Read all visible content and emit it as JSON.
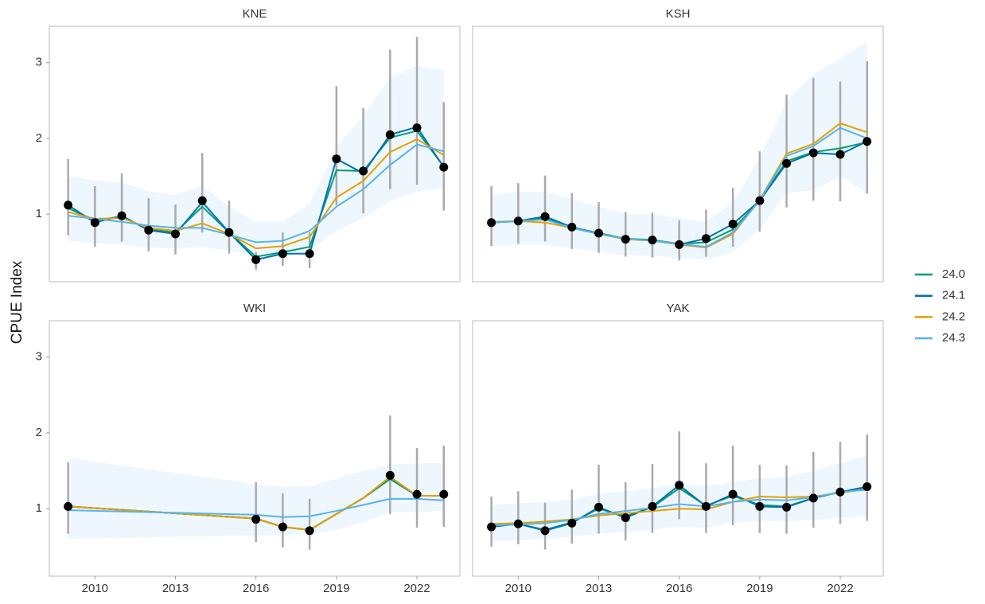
{
  "y_label": "CPUE Index",
  "chart_data": [
    {
      "type": "line",
      "title": "KNE",
      "x": [
        2009,
        2010,
        2011,
        2012,
        2013,
        2014,
        2015,
        2016,
        2017,
        2018,
        2019,
        2020,
        2021,
        2022,
        2023
      ],
      "xlim": [
        2008.3,
        2023.6
      ],
      "ylim": [
        0.11,
        3.48
      ],
      "yticks": [
        1,
        2,
        3
      ],
      "band_color": "#56B4E9",
      "band_upper": [
        1.5,
        1.45,
        1.42,
        1.3,
        1.25,
        1.38,
        1.1,
        0.9,
        0.9,
        1.14,
        1.9,
        2.3,
        2.8,
        2.96,
        2.9
      ],
      "band_lower": [
        0.65,
        0.62,
        0.6,
        0.56,
        0.55,
        0.57,
        0.52,
        0.43,
        0.44,
        0.52,
        0.78,
        0.95,
        1.17,
        1.3,
        1.35
      ],
      "observed": [
        1.12,
        0.89,
        0.98,
        0.79,
        0.74,
        1.18,
        0.76,
        0.4,
        0.48,
        0.48,
        1.73,
        1.57,
        2.05,
        2.14,
        1.62
      ],
      "err_upper": [
        1.73,
        1.37,
        1.54,
        1.21,
        1.13,
        1.81,
        1.18,
        0.5,
        0.76,
        0.76,
        2.69,
        2.4,
        3.17,
        3.34,
        2.48
      ],
      "err_lower": [
        0.72,
        0.57,
        0.64,
        0.51,
        0.47,
        0.76,
        0.48,
        0.27,
        0.32,
        0.29,
        1.12,
        1.01,
        1.33,
        1.39,
        1.05
      ],
      "series": [
        {
          "name": "24.0",
          "color": "#009E73",
          "values": [
            1.08,
            0.92,
            0.97,
            0.8,
            0.76,
            1.1,
            0.76,
            0.44,
            0.5,
            0.57,
            1.58,
            1.57,
            2.01,
            2.1,
            1.63
          ]
        },
        {
          "name": "24.1",
          "color": "#0072B2",
          "values": [
            1.12,
            0.89,
            0.98,
            0.79,
            0.74,
            1.16,
            0.76,
            0.4,
            0.48,
            0.48,
            1.73,
            1.54,
            2.05,
            2.15,
            1.62
          ]
        },
        {
          "name": "24.2",
          "color": "#E69F00",
          "values": [
            1.03,
            0.94,
            0.95,
            0.82,
            0.78,
            0.88,
            0.74,
            0.55,
            0.58,
            0.7,
            1.22,
            1.44,
            1.82,
            1.99,
            1.78
          ]
        },
        {
          "name": "24.3",
          "color": "#56B4E9",
          "values": [
            0.98,
            0.94,
            0.9,
            0.85,
            0.82,
            0.82,
            0.73,
            0.63,
            0.65,
            0.78,
            1.1,
            1.33,
            1.65,
            1.92,
            1.83
          ]
        }
      ]
    },
    {
      "type": "line",
      "title": "KSH",
      "x": [
        2009,
        2010,
        2011,
        2012,
        2013,
        2014,
        2015,
        2016,
        2017,
        2018,
        2019,
        2020,
        2021,
        2022,
        2023
      ],
      "xlim": [
        2008.3,
        2023.6
      ],
      "ylim": [
        0.11,
        3.48
      ],
      "band_color": "#56B4E9",
      "band_upper": [
        1.25,
        1.3,
        1.3,
        1.2,
        1.1,
        1.0,
        1.0,
        0.95,
        0.9,
        1.15,
        1.75,
        2.5,
        2.85,
        3.05,
        3.28
      ],
      "band_lower": [
        0.58,
        0.6,
        0.6,
        0.55,
        0.5,
        0.46,
        0.45,
        0.42,
        0.4,
        0.5,
        0.8,
        1.28,
        1.32,
        1.5,
        1.28
      ],
      "observed": [
        0.89,
        0.91,
        0.97,
        0.83,
        0.75,
        0.67,
        0.66,
        0.6,
        0.68,
        0.87,
        1.18,
        1.67,
        1.81,
        1.79,
        1.96
      ],
      "err_upper": [
        1.37,
        1.41,
        1.51,
        1.28,
        1.16,
        1.03,
        1.02,
        0.92,
        1.06,
        1.35,
        1.83,
        2.58,
        2.8,
        2.75,
        3.02
      ],
      "err_lower": [
        0.58,
        0.61,
        0.64,
        0.54,
        0.49,
        0.44,
        0.43,
        0.39,
        0.44,
        0.57,
        0.77,
        1.09,
        1.18,
        1.17,
        1.27
      ],
      "series": [
        {
          "name": "24.0",
          "color": "#009E73",
          "values": [
            0.89,
            0.91,
            0.95,
            0.82,
            0.75,
            0.68,
            0.66,
            0.61,
            0.63,
            0.8,
            1.18,
            1.7,
            1.82,
            1.87,
            1.95
          ]
        },
        {
          "name": "24.1",
          "color": "#0072B2",
          "values": [
            0.89,
            0.91,
            0.97,
            0.83,
            0.75,
            0.67,
            0.66,
            0.6,
            0.68,
            0.87,
            1.18,
            1.67,
            1.81,
            1.79,
            1.96
          ]
        },
        {
          "name": "24.2",
          "color": "#E69F00",
          "values": [
            0.9,
            0.91,
            0.89,
            0.82,
            0.74,
            0.67,
            0.65,
            0.6,
            0.56,
            0.74,
            1.19,
            1.8,
            1.93,
            2.2,
            2.08
          ]
        },
        {
          "name": "24.3",
          "color": "#56B4E9",
          "values": [
            0.89,
            0.91,
            0.93,
            0.82,
            0.74,
            0.68,
            0.65,
            0.61,
            0.57,
            0.76,
            1.18,
            1.77,
            1.9,
            2.14,
            2.0
          ]
        }
      ]
    },
    {
      "type": "line",
      "title": "WKI",
      "x": [
        2009,
        2016,
        2017,
        2018,
        2019,
        2020,
        2021,
        2022,
        2023
      ],
      "xlim": [
        2008.3,
        2023.6
      ],
      "ylim": [
        0.11,
        3.48
      ],
      "xticks": [
        2010,
        2013,
        2016,
        2019,
        2022
      ],
      "yticks": [
        1,
        2,
        3
      ],
      "band_color": "#56B4E9",
      "band_upper": [
        1.67,
        1.32,
        1.29,
        1.29,
        1.4,
        1.5,
        1.58,
        1.6,
        1.6
      ],
      "band_lower": [
        0.6,
        0.65,
        0.65,
        0.66,
        0.72,
        0.82,
        0.95,
        0.95,
        0.98
      ],
      "observed": [
        1.03,
        0.86,
        0.76,
        0.71,
        null,
        null,
        1.44,
        1.19,
        1.19
      ],
      "err_upper": [
        1.61,
        1.35,
        1.2,
        1.13,
        null,
        null,
        2.23,
        1.8,
        1.83
      ],
      "err_lower": [
        0.67,
        0.56,
        0.49,
        0.46,
        null,
        null,
        0.93,
        0.75,
        0.76
      ],
      "series": [
        {
          "name": "24.0",
          "color": "#009E73",
          "values": [
            1.03,
            0.87,
            0.76,
            0.72,
            0.93,
            1.14,
            1.39,
            1.17,
            1.17
          ]
        },
        {
          "name": "24.1",
          "color": "#0072B2",
          "values": [
            1.03,
            0.87,
            0.76,
            0.72,
            0.93,
            1.14,
            1.42,
            1.17,
            1.17
          ]
        },
        {
          "name": "24.2",
          "color": "#E69F00",
          "values": [
            1.03,
            0.87,
            0.76,
            0.72,
            0.93,
            1.14,
            1.42,
            1.17,
            1.17
          ]
        },
        {
          "name": "24.3",
          "color": "#56B4E9",
          "values": [
            0.98,
            0.92,
            0.89,
            0.9,
            0.97,
            1.05,
            1.13,
            1.13,
            1.11
          ]
        }
      ]
    },
    {
      "type": "line",
      "title": "YAK",
      "x": [
        2009,
        2010,
        2011,
        2012,
        2013,
        2014,
        2015,
        2016,
        2017,
        2018,
        2019,
        2020,
        2021,
        2022,
        2023
      ],
      "xlim": [
        2008.3,
        2023.6
      ],
      "ylim": [
        0.11,
        3.48
      ],
      "xticks": [
        2010,
        2013,
        2016,
        2019,
        2022
      ],
      "band_color": "#56B4E9",
      "band_upper": [
        1.05,
        1.07,
        1.09,
        1.12,
        1.2,
        1.23,
        1.27,
        1.33,
        1.3,
        1.35,
        1.4,
        1.42,
        1.5,
        1.6,
        1.7
      ],
      "band_lower": [
        0.57,
        0.58,
        0.6,
        0.63,
        0.67,
        0.69,
        0.72,
        0.77,
        0.75,
        0.81,
        0.84,
        0.83,
        0.85,
        0.88,
        0.9
      ],
      "observed": [
        0.76,
        0.8,
        0.71,
        0.81,
        1.02,
        0.88,
        1.03,
        1.31,
        1.03,
        1.19,
        1.03,
        1.02,
        1.14,
        1.22,
        1.29
      ],
      "err_upper": [
        1.16,
        1.23,
        1.08,
        1.25,
        1.58,
        1.35,
        1.59,
        2.02,
        1.6,
        1.83,
        1.58,
        1.57,
        1.75,
        1.88,
        1.98
      ],
      "err_lower": [
        0.5,
        0.53,
        0.46,
        0.54,
        0.67,
        0.58,
        0.68,
        0.86,
        0.68,
        0.78,
        0.68,
        0.67,
        0.75,
        0.8,
        0.84
      ],
      "series": [
        {
          "name": "24.0",
          "color": "#009E73",
          "values": [
            0.78,
            0.8,
            0.72,
            0.82,
            1.0,
            0.9,
            1.02,
            1.27,
            1.04,
            1.17,
            1.05,
            1.03,
            1.14,
            1.22,
            1.27
          ]
        },
        {
          "name": "24.1",
          "color": "#0072B2",
          "values": [
            0.76,
            0.8,
            0.71,
            0.81,
            1.02,
            0.88,
            1.03,
            1.31,
            1.03,
            1.19,
            1.03,
            1.02,
            1.14,
            1.22,
            1.29
          ]
        },
        {
          "name": "24.2",
          "color": "#E69F00",
          "values": [
            0.8,
            0.81,
            0.83,
            0.86,
            0.91,
            0.94,
            0.97,
            1.0,
            0.99,
            1.09,
            1.16,
            1.15,
            1.16,
            1.21,
            1.26
          ]
        },
        {
          "name": "24.3",
          "color": "#56B4E9",
          "values": [
            0.78,
            0.79,
            0.81,
            0.85,
            0.93,
            0.97,
            1.01,
            1.06,
            1.03,
            1.09,
            1.12,
            1.11,
            1.15,
            1.22,
            1.25
          ]
        }
      ]
    }
  ]
}
